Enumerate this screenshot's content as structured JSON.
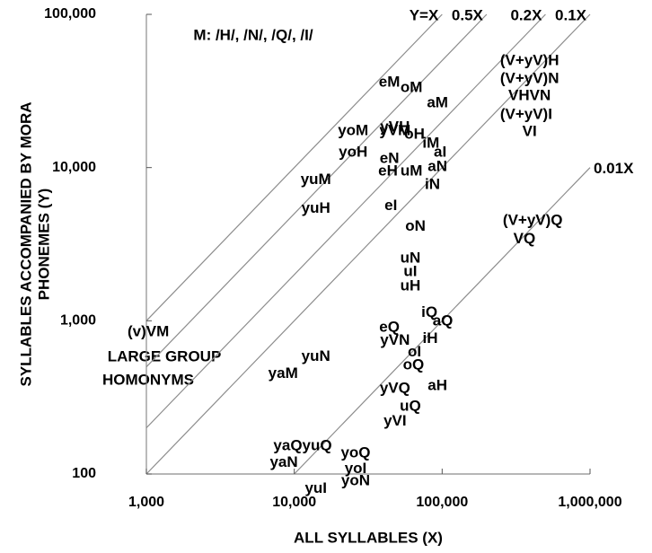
{
  "chart_data": {
    "type": "scatter",
    "log_x": true,
    "log_y": true,
    "xlim": [
      1000,
      1000000
    ],
    "ylim": [
      100,
      100000
    ],
    "xticks": [
      {
        "value": 1000,
        "label": "1,000"
      },
      {
        "value": 10000,
        "label": "10,000"
      },
      {
        "value": 100000,
        "label": "100,000"
      },
      {
        "value": 1000000,
        "label": "1,000,000"
      }
    ],
    "yticks": [
      100,
      {
        "value": 1000,
        "label": "1,000"
      },
      {
        "value": 10000,
        "label": "10,000"
      },
      {
        "value": 100000,
        "label": "100,000"
      }
    ],
    "xlabel": "ALL SYLLABLES (X)",
    "ylabel": [
      "SYLLABLES ACCOMPANIED BY MORA",
      "PHONEMES (Y)"
    ],
    "annotations": [
      "M: /H/, /N/, /Q/, /I/",
      "LARGE GROUP",
      "HOMONYMS"
    ],
    "ref_lines": [
      {
        "label": "Y=X",
        "factor": 1
      },
      {
        "label": "0.5X",
        "factor": 0.5
      },
      {
        "label": "0.2X",
        "factor": 0.2
      },
      {
        "label": "0.1X",
        "factor": 0.1
      },
      {
        "label": "0.01X",
        "factor": 0.01
      }
    ],
    "line_color": "#8c8c8c",
    "labels": [
      "(V+yV)H",
      "(V+yV)N",
      "VHVN",
      "(V+yV)I",
      "VI",
      "eM",
      "oM",
      "aM",
      "yVM",
      "yoM",
      "yVH",
      "oH",
      "iM",
      "aI",
      "yoH",
      "eN",
      "eH",
      "uM",
      "aN",
      "iN",
      "yuM",
      "yuH",
      "eI",
      "oN",
      "(V+yV)Q",
      "VQ",
      "uN",
      "uI",
      "uH",
      "iQ",
      "aQ",
      "eQ",
      "yVN",
      "iH",
      "oI",
      "oQ",
      "(v)VM",
      "yuN",
      "yaM",
      "yVQ",
      "aH",
      "uQ",
      "yVI",
      "yaQyuQ",
      "yoQ",
      "yaN",
      "yoI",
      "yoN",
      "yuI"
    ],
    "x": [
      390000,
      390000,
      390000,
      370000,
      390000,
      44000,
      62000,
      93000,
      48000,
      25000,
      48000,
      65000,
      84000,
      97000,
      25000,
      44000,
      43000,
      62000,
      93000,
      86000,
      14000,
      14000,
      45000,
      66000,
      410000,
      360000,
      61000,
      61000,
      61000,
      82000,
      101000,
      44000,
      48000,
      83000,
      65000,
      64000,
      1030,
      14000,
      8400,
      48000,
      93000,
      61000,
      48000,
      11400,
      26000,
      8500,
      26000,
      26000,
      14000
    ],
    "y": [
      49500,
      37800,
      29300,
      22000,
      17100,
      35800,
      33000,
      26300,
      17300,
      17300,
      18300,
      16400,
      14300,
      12500,
      12500,
      11400,
      9400,
      9400,
      10100,
      7700,
      8300,
      5400,
      5600,
      4100,
      4500,
      3400,
      2550,
      2080,
      1680,
      1130,
      990,
      900,
      740,
      760,
      620,
      510,
      840,
      580,
      450,
      360,
      375,
      275,
      220,
      152,
      136,
      118,
      108,
      90,
      80
    ]
  }
}
